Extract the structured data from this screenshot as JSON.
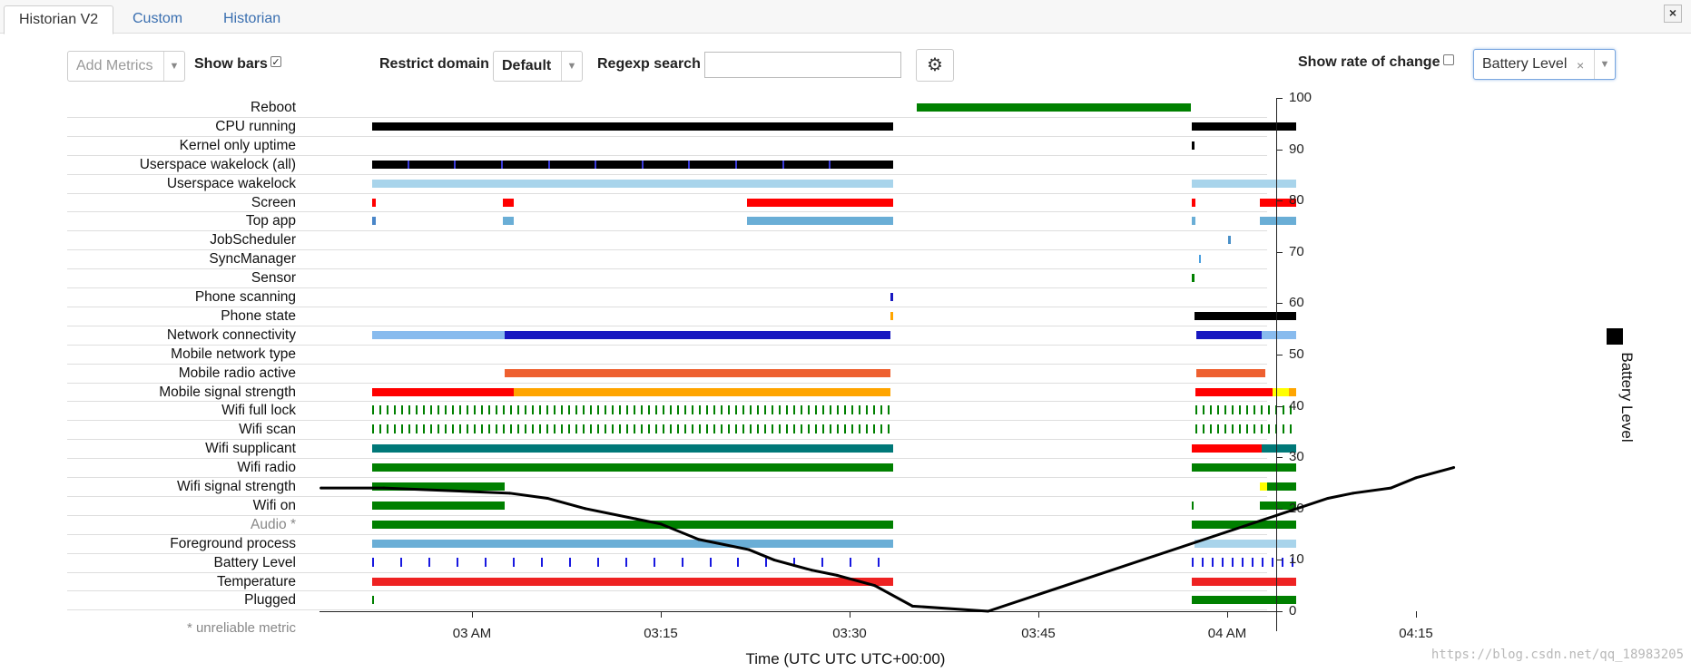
{
  "tabs": [
    {
      "label": "Historian V2",
      "active": true
    },
    {
      "label": "Custom",
      "active": false
    },
    {
      "label": "Historian",
      "active": false
    }
  ],
  "toolbar": {
    "add_metrics_placeholder": "Add Metrics",
    "show_bars_label": "Show bars",
    "show_bars_checked": true,
    "restrict_domain_label": "Restrict domain",
    "restrict_domain_value": "Default",
    "regexp_label": "Regexp search",
    "regexp_value": "",
    "show_rate_label": "Show rate of change",
    "show_rate_checked": false,
    "metric_selected": "Battery Level",
    "close_glyph": "×"
  },
  "rows": [
    {
      "label": "Reboot",
      "bars": [
        [
          0.465,
          0.699,
          "#008000"
        ]
      ]
    },
    {
      "label": "CPU running",
      "bars": [
        [
          0.0,
          0.445,
          "#000000"
        ],
        [
          0.7,
          0.789,
          "#000000"
        ]
      ]
    },
    {
      "label": "Kernel only uptime",
      "bars": [
        [
          0.7,
          0.702,
          "#000000"
        ]
      ]
    },
    {
      "label": "Userspace wakelock (all)",
      "bars": [
        [
          0.0,
          0.445,
          "#000000"
        ]
      ],
      "ticks": true
    },
    {
      "label": "Userspace wakelock",
      "bars": [
        [
          0.0,
          0.445,
          "#a8d4eb"
        ],
        [
          0.7,
          0.789,
          "#a8d4eb"
        ]
      ]
    },
    {
      "label": "Screen",
      "bars": [
        [
          0.0,
          0.003,
          "#ff0000"
        ],
        [
          0.112,
          0.121,
          "#ff0000"
        ],
        [
          0.32,
          0.445,
          "#ff0000"
        ],
        [
          0.7,
          0.703,
          "#ff0000"
        ],
        [
          0.758,
          0.789,
          "#ff0000"
        ]
      ]
    },
    {
      "label": "Top app",
      "bars": [
        [
          0.0,
          0.003,
          "#4a86c8"
        ],
        [
          0.112,
          0.121,
          "#6aaed6"
        ],
        [
          0.32,
          0.445,
          "#6aaed6"
        ],
        [
          0.7,
          0.703,
          "#6aaed6"
        ],
        [
          0.758,
          0.789,
          "#6aaed6"
        ]
      ]
    },
    {
      "label": "JobScheduler",
      "bars": [
        [
          0.731,
          0.733,
          "#4a90c8"
        ]
      ]
    },
    {
      "label": "SyncManager",
      "bars": [
        [
          0.706,
          0.708,
          "#4aa0e0"
        ]
      ]
    },
    {
      "label": "Sensor",
      "bars": [
        [
          0.7,
          0.702,
          "#008000"
        ]
      ]
    },
    {
      "label": "Phone scanning",
      "bars": [
        [
          0.443,
          0.445,
          "#1818c0"
        ]
      ]
    },
    {
      "label": "Phone state",
      "bars": [
        [
          0.443,
          0.445,
          "#ffa500"
        ],
        [
          0.702,
          0.789,
          "#000000"
        ]
      ]
    },
    {
      "label": "Network connectivity",
      "bars": [
        [
          0.0,
          0.113,
          "#88bbee"
        ],
        [
          0.113,
          0.443,
          "#1818c0"
        ],
        [
          0.704,
          0.76,
          "#1818c0"
        ],
        [
          0.76,
          0.789,
          "#88bbee"
        ]
      ]
    },
    {
      "label": "Mobile network type",
      "bars": []
    },
    {
      "label": "Mobile radio active",
      "bars": [
        [
          0.113,
          0.443,
          "#ee6030"
        ],
        [
          0.704,
          0.763,
          "#ee6030"
        ]
      ]
    },
    {
      "label": "Mobile signal strength",
      "bars": [
        [
          0.0,
          0.121,
          "#ff0000"
        ],
        [
          0.121,
          0.443,
          "#ffa500"
        ],
        [
          0.703,
          0.769,
          "#ff0000"
        ],
        [
          0.769,
          0.783,
          "#ffff00"
        ],
        [
          0.783,
          0.789,
          "#ffa500"
        ]
      ]
    },
    {
      "label": "Wifi full lock",
      "bars": [],
      "ticks": true
    },
    {
      "label": "Wifi scan",
      "bars": [],
      "ticks": true
    },
    {
      "label": "Wifi supplicant",
      "bars": [
        [
          0.0,
          0.445,
          "#007878"
        ],
        [
          0.7,
          0.76,
          "#ff0000"
        ],
        [
          0.76,
          0.789,
          "#007878"
        ]
      ]
    },
    {
      "label": "Wifi radio",
      "bars": [
        [
          0.0,
          0.445,
          "#008000"
        ],
        [
          0.7,
          0.789,
          "#008000"
        ]
      ]
    },
    {
      "label": "Wifi signal strength",
      "bars": [
        [
          0.0,
          0.113,
          "#008000"
        ],
        [
          0.758,
          0.764,
          "#ffff00"
        ],
        [
          0.764,
          0.789,
          "#008000"
        ]
      ]
    },
    {
      "label": "Wifi on",
      "bars": [
        [
          0.0,
          0.113,
          "#008000"
        ],
        [
          0.7,
          0.701,
          "#008000"
        ],
        [
          0.758,
          0.789,
          "#008000"
        ]
      ]
    },
    {
      "label": "Audio *",
      "gray": true,
      "bars": [
        [
          0.0,
          0.445,
          "#008000"
        ],
        [
          0.7,
          0.789,
          "#008000"
        ]
      ]
    },
    {
      "label": "Foreground process",
      "bars": [
        [
          0.0,
          0.445,
          "#6aaed6"
        ],
        [
          0.702,
          0.789,
          "#a8d4eb"
        ]
      ]
    },
    {
      "label": "Battery Level",
      "bars": [],
      "ticks": true
    },
    {
      "label": "Temperature",
      "bars": [
        [
          0.0,
          0.445,
          "#ee2222"
        ],
        [
          0.7,
          0.789,
          "#ee2222"
        ]
      ]
    },
    {
      "label": "Plugged",
      "bars": [
        [
          0.0,
          0.001,
          "#008000"
        ],
        [
          0.7,
          0.789,
          "#008000"
        ]
      ]
    }
  ],
  "unreliable_note": "* unreliable metric",
  "chart_data": {
    "type": "line",
    "title": "",
    "xlabel": "Time (UTC UTC UTC+00:00)",
    "ylabel": "Battery Level",
    "ylim": [
      0,
      100
    ],
    "yticks": [
      0,
      10,
      20,
      30,
      40,
      50,
      60,
      70,
      80,
      90,
      100
    ],
    "xticks": [
      "03 AM",
      "03:15",
      "03:30",
      "03:45",
      "04 AM",
      "04:15"
    ],
    "series": [
      {
        "name": "Battery Level",
        "color": "#000000",
        "x": [
          "02:48",
          "02:53",
          "03:03",
          "03:06",
          "03:09",
          "03:13",
          "03:15",
          "03:18",
          "03:22",
          "03:24",
          "03:27",
          "03:29",
          "03:32",
          "03:35",
          "03:41",
          "04:08",
          "04:10",
          "04:13",
          "04:15",
          "04:18"
        ],
        "y": [
          24,
          24,
          23,
          22,
          20,
          18,
          17,
          14,
          12,
          10,
          8,
          7,
          5,
          1,
          0,
          22,
          23,
          24,
          26,
          28
        ]
      }
    ]
  },
  "legend": {
    "label": "Battery Level",
    "color": "#000000"
  },
  "watermark": "https://blog.csdn.net/qq_18983205"
}
